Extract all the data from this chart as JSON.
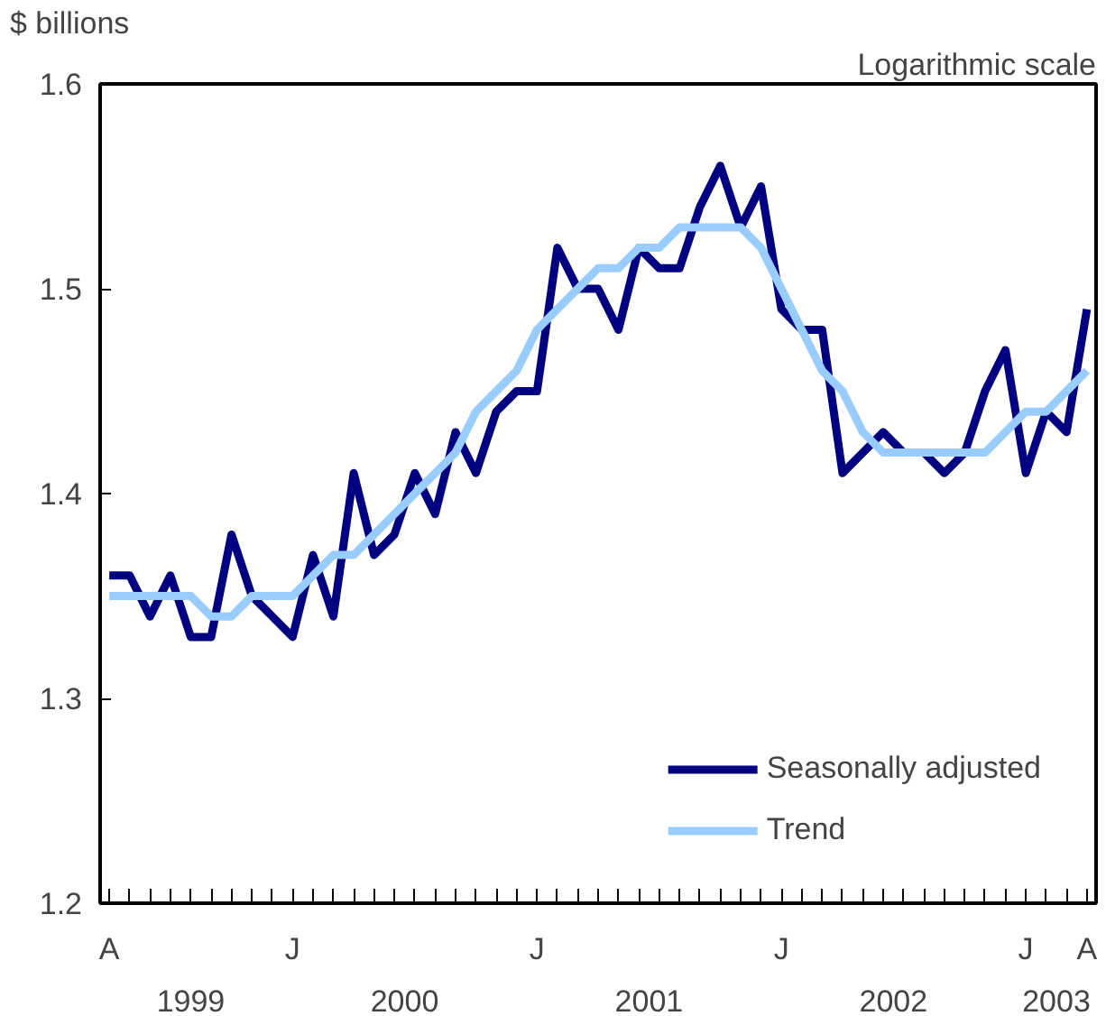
{
  "chart_data": {
    "type": "line",
    "ylabel": "$ billions",
    "annotations": [
      "Logarithmic scale",
      "1999",
      "2000",
      "2001",
      "2002",
      "2003"
    ],
    "categories": [
      "A",
      null,
      null,
      null,
      null,
      null,
      null,
      null,
      null,
      "J",
      null,
      null,
      null,
      null,
      null,
      null,
      null,
      null,
      null,
      null,
      null,
      "J",
      null,
      null,
      null,
      null,
      null,
      null,
      null,
      null,
      null,
      null,
      null,
      "J",
      null,
      null,
      null,
      null,
      null,
      null,
      null,
      null,
      null,
      null,
      null,
      "J",
      null,
      null,
      "A"
    ],
    "series": [
      {
        "name": "Seasonally adjusted",
        "color": "#000080",
        "values": [
          1.36,
          1.36,
          1.34,
          1.36,
          1.33,
          1.33,
          1.38,
          1.35,
          1.34,
          1.33,
          1.37,
          1.34,
          1.41,
          1.37,
          1.38,
          1.41,
          1.39,
          1.43,
          1.41,
          1.44,
          1.45,
          1.45,
          1.52,
          1.5,
          1.5,
          1.48,
          1.52,
          1.51,
          1.51,
          1.54,
          1.56,
          1.53,
          1.55,
          1.49,
          1.48,
          1.48,
          1.41,
          1.42,
          1.43,
          1.42,
          1.42,
          1.41,
          1.42,
          1.45,
          1.47,
          1.41,
          1.44,
          1.43,
          1.49
        ]
      },
      {
        "name": "Trend",
        "color": "#99ccff",
        "values": [
          1.35,
          1.35,
          1.35,
          1.35,
          1.35,
          1.34,
          1.34,
          1.35,
          1.35,
          1.35,
          1.36,
          1.37,
          1.37,
          1.38,
          1.39,
          1.4,
          1.41,
          1.42,
          1.44,
          1.45,
          1.46,
          1.48,
          1.49,
          1.5,
          1.51,
          1.51,
          1.52,
          1.52,
          1.53,
          1.53,
          1.53,
          1.53,
          1.52,
          1.5,
          1.48,
          1.46,
          1.45,
          1.43,
          1.42,
          1.42,
          1.42,
          1.42,
          1.42,
          1.42,
          1.43,
          1.44,
          1.44,
          1.45,
          1.46
        ]
      }
    ],
    "ylim": [
      1.2,
      1.6
    ],
    "yticks": [
      1.2,
      1.3,
      1.4,
      1.5,
      1.6
    ],
    "grid": false,
    "legend": "bottom right",
    "marker": "none",
    "line_style": "solid"
  }
}
